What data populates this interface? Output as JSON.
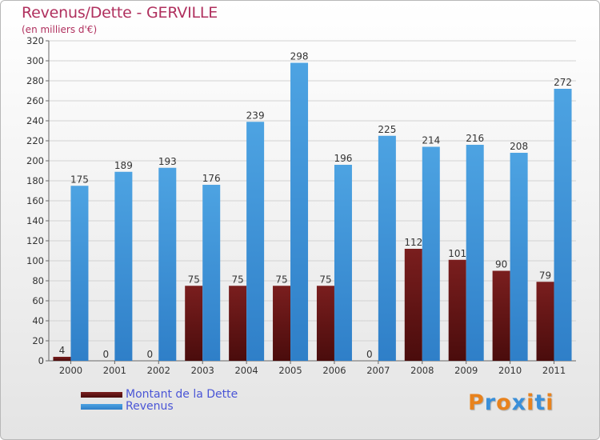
{
  "title": "Revenus/Dette - GERVILLE",
  "subtitle": "(en milliers d'€)",
  "brand": "Proxiti",
  "colors": {
    "debt": "#7a1e1e",
    "revenue": "#4da3e2",
    "text": "#b0305e",
    "legend_text": "#4a55d6",
    "brand_letters": [
      "#e8821d",
      "#3a8fd9",
      "#e8821d",
      "#3a8fd9",
      "#e8821d",
      "#3a8fd9",
      "#e8821d"
    ]
  },
  "chart_data": {
    "type": "bar",
    "categories": [
      "2000",
      "2001",
      "2002",
      "2003",
      "2004",
      "2005",
      "2006",
      "2007",
      "2008",
      "2009",
      "2010",
      "2011"
    ],
    "series": [
      {
        "name": "Montant de la Dette",
        "values": [
          4,
          0,
          0,
          75,
          75,
          75,
          75,
          0,
          112,
          101,
          90,
          79
        ]
      },
      {
        "name": "Revenus",
        "values": [
          175,
          189,
          193,
          176,
          239,
          298,
          196,
          225,
          214,
          216,
          208,
          272
        ]
      }
    ],
    "ylim": [
      0,
      320
    ],
    "yticks": [
      0,
      20,
      40,
      60,
      80,
      100,
      120,
      140,
      160,
      180,
      200,
      220,
      240,
      260,
      280,
      300,
      320
    ],
    "grid": true,
    "legend_position": "bottom-left"
  }
}
